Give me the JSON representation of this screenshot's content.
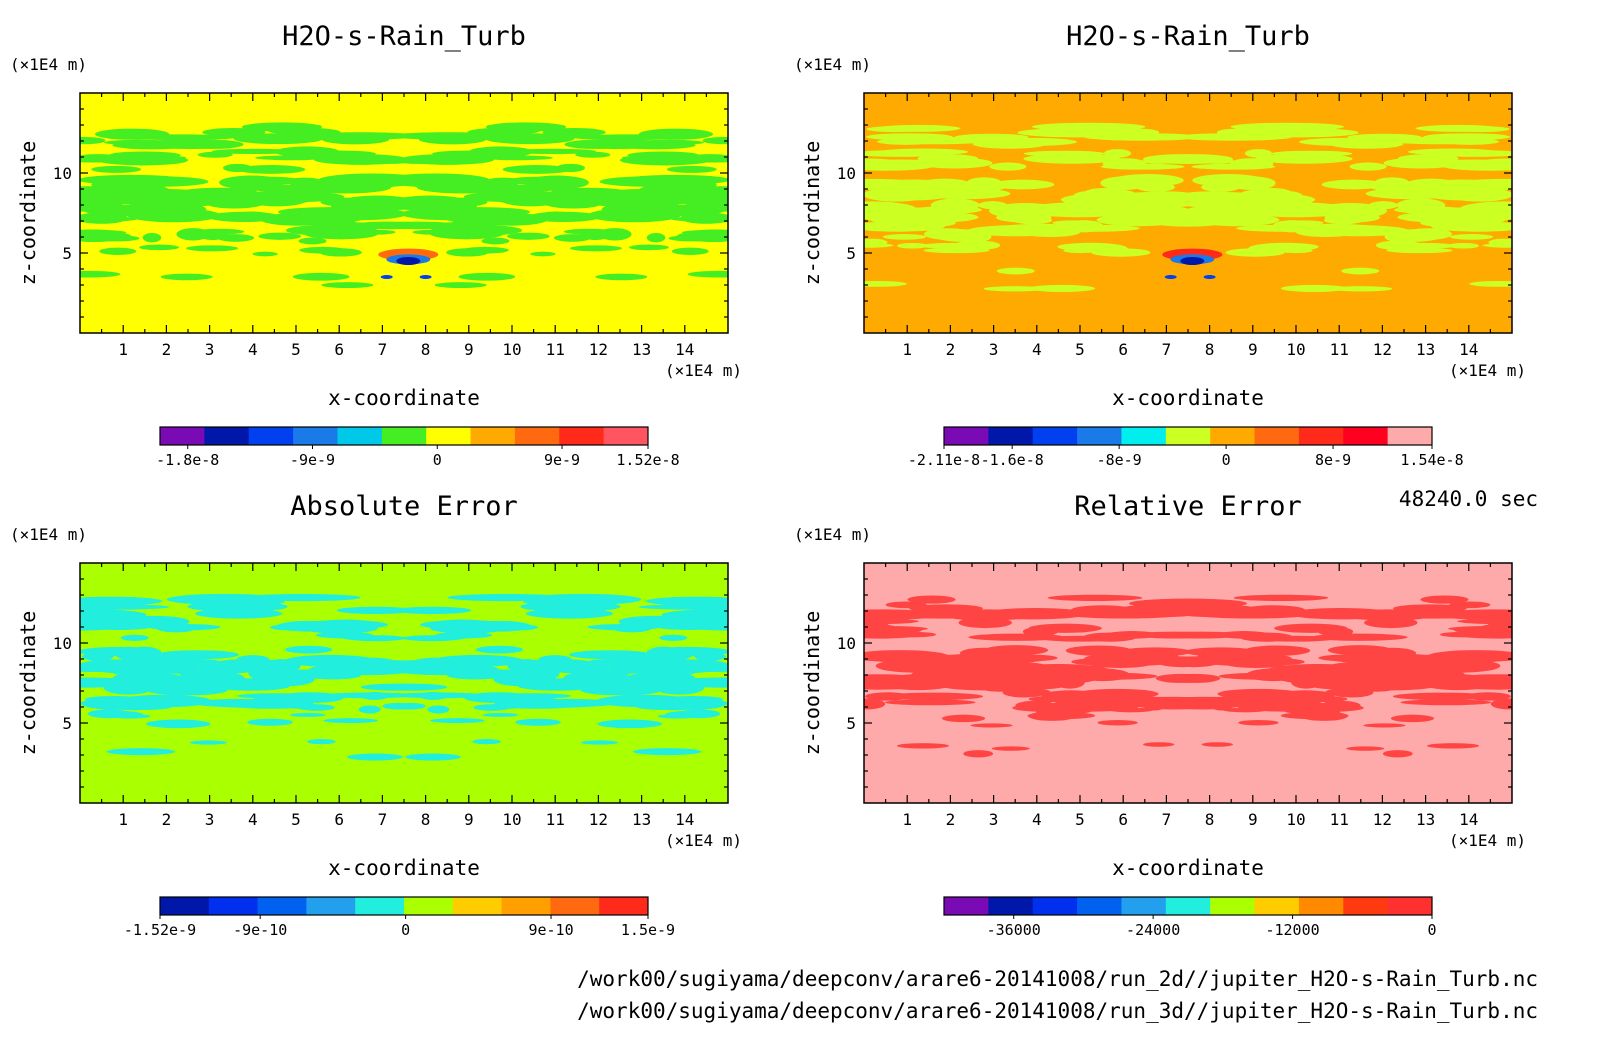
{
  "time_label": "48240.0 sec",
  "files": [
    "/work00/sugiyama/deepconv/arare6-20141008/run_2d//jupiter_H2O-s-Rain_Turb.nc",
    "/work00/sugiyama/deepconv/arare6-20141008/run_3d//jupiter_H2O-s-Rain_Turb.nc"
  ],
  "chart_data": [
    {
      "type": "heatmap",
      "title": "H2O-s-Rain_Turb",
      "xlabel": "x-coordinate",
      "ylabel": "z-coordinate",
      "x_unit": "(×1E4 m)",
      "y_unit": "(×1E4 m)",
      "xlim": [
        0,
        15
      ],
      "ylim": [
        0,
        15
      ],
      "xticks": [
        1,
        2,
        3,
        4,
        5,
        6,
        7,
        8,
        9,
        10,
        11,
        12,
        13,
        14
      ],
      "yticks": [
        5,
        10
      ],
      "background_color": "#ffff00",
      "feature_color": "#44ee22",
      "colorbar": {
        "colors": [
          "#7a0ab4",
          "#0018aa",
          "#0040ee",
          "#1a7ae8",
          "#00c8e8",
          "#44ee22",
          "#ffff00",
          "#ffaa00",
          "#ff6a10",
          "#ff2a1a",
          "#ff5560"
        ],
        "tick_labels": [
          "-1.8e-8",
          "-9e-9",
          "0",
          "9e-9",
          "1.52e-8"
        ],
        "tick_values": [
          -1.8e-08,
          -9e-09,
          0,
          9e-09,
          1.52e-08
        ],
        "range": [
          -2e-08,
          1.52e-08
        ]
      }
    },
    {
      "type": "heatmap",
      "title": "H2O-s-Rain_Turb",
      "xlabel": "x-coordinate",
      "ylabel": "z-coordinate",
      "x_unit": "(×1E4 m)",
      "y_unit": "(×1E4 m)",
      "xlim": [
        0,
        15
      ],
      "ylim": [
        0,
        15
      ],
      "xticks": [
        1,
        2,
        3,
        4,
        5,
        6,
        7,
        8,
        9,
        10,
        11,
        12,
        13,
        14
      ],
      "yticks": [
        5,
        10
      ],
      "background_color": "#ffaa00",
      "feature_color": "#ccff22",
      "colorbar": {
        "colors": [
          "#7a0ab4",
          "#0018aa",
          "#0040ee",
          "#1a7ae8",
          "#00eeee",
          "#ccff22",
          "#ffaa00",
          "#ff6a10",
          "#ff2a1a",
          "#ff0020",
          "#ffaaaa"
        ],
        "tick_labels": [
          "-2.11e-8",
          "-1.6e-8",
          "-8e-9",
          "0",
          "8e-9",
          "1.54e-8"
        ],
        "tick_values": [
          -2.11e-08,
          -1.6e-08,
          -8e-09,
          0,
          8e-09,
          1.54e-08
        ],
        "range": [
          -2.11e-08,
          1.54e-08
        ]
      }
    },
    {
      "type": "heatmap",
      "title": "Absolute Error",
      "xlabel": "x-coordinate",
      "ylabel": "z-coordinate",
      "x_unit": "(×1E4 m)",
      "y_unit": "(×1E4 m)",
      "xlim": [
        0,
        15
      ],
      "ylim": [
        0,
        15
      ],
      "xticks": [
        1,
        2,
        3,
        4,
        5,
        6,
        7,
        8,
        9,
        10,
        11,
        12,
        13,
        14
      ],
      "yticks": [
        5,
        10
      ],
      "background_color": "#aaff00",
      "feature_color": "#22eedd",
      "colorbar": {
        "colors": [
          "#0018aa",
          "#0030ee",
          "#0060f0",
          "#22a0ee",
          "#22eedd",
          "#aaff00",
          "#ffcc00",
          "#ffa000",
          "#ff6a10",
          "#ff2a1a"
        ],
        "tick_labels": [
          "-1.52e-9",
          "-9e-10",
          "0",
          "9e-10",
          "1.5e-9"
        ],
        "tick_values": [
          -1.52e-09,
          -9e-10,
          0,
          9e-10,
          1.5e-09
        ],
        "range": [
          -1.52e-09,
          1.5e-09
        ]
      }
    },
    {
      "type": "heatmap",
      "title": "Relative Error",
      "xlabel": "x-coordinate",
      "ylabel": "z-coordinate",
      "x_unit": "(×1E4 m)",
      "y_unit": "(×1E4 m)",
      "xlim": [
        0,
        15
      ],
      "ylim": [
        0,
        15
      ],
      "xticks": [
        1,
        2,
        3,
        4,
        5,
        6,
        7,
        8,
        9,
        10,
        11,
        12,
        13,
        14
      ],
      "yticks": [
        5,
        10
      ],
      "background_color": "#ffaaaa",
      "feature_color": "#ff4444",
      "colorbar": {
        "colors": [
          "#7a0ab4",
          "#0018aa",
          "#0030ee",
          "#0060f0",
          "#22a0ee",
          "#22eedd",
          "#aaff00",
          "#ffcc00",
          "#ff8a00",
          "#ff3a10",
          "#ff3030"
        ],
        "tick_labels": [
          "-36000",
          "-24000",
          "-12000",
          "0"
        ],
        "tick_values": [
          -36000,
          -24000,
          -12000,
          0
        ],
        "range": [
          -42000,
          0
        ]
      }
    }
  ]
}
